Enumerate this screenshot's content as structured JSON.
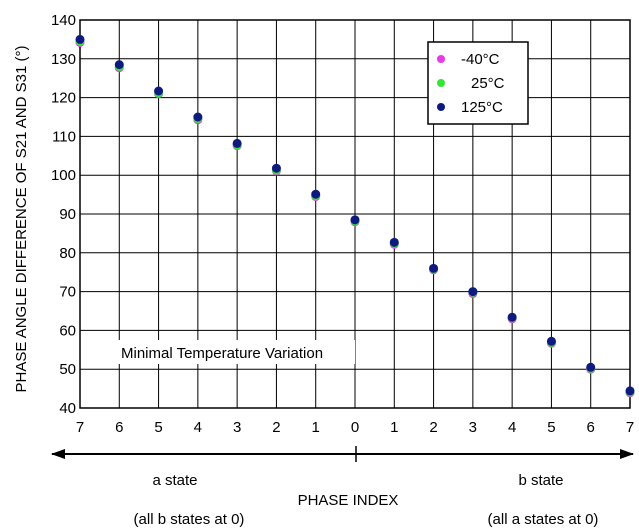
{
  "chart_data": {
    "type": "scatter",
    "ylabel": "PHASE ANGLE DIFFERENCE OF S21 AND S31 (°)",
    "xlabel": "PHASE INDEX",
    "ylim": [
      40,
      140
    ],
    "yticks": [
      40,
      50,
      60,
      70,
      80,
      90,
      100,
      110,
      120,
      130,
      140
    ],
    "categories": [
      "7",
      "6",
      "5",
      "4",
      "3",
      "2",
      "1",
      "0",
      "1",
      "2",
      "3",
      "4",
      "5",
      "6",
      "7"
    ],
    "grid": true,
    "legend_position": "top-right",
    "series": [
      {
        "name": "-40°C",
        "color": "#e83be8",
        "values": [
          134.2,
          127.7,
          121.0,
          114.3,
          107.6,
          101.1,
          94.5,
          88.0,
          82.2,
          75.6,
          69.5,
          63.0,
          56.7,
          50.0,
          43.9
        ]
      },
      {
        "name": "25°C",
        "color": "#33e633",
        "values": [
          134.5,
          128.0,
          121.2,
          114.6,
          107.8,
          101.3,
          94.7,
          88.2,
          82.4,
          75.8,
          69.8,
          63.2,
          56.9,
          50.2,
          44.1
        ]
      },
      {
        "name": "125°C",
        "color": "#0d1a80",
        "values": [
          135.0,
          128.5,
          121.7,
          115.0,
          108.2,
          101.8,
          95.1,
          88.5,
          82.7,
          76.0,
          70.0,
          63.4,
          57.2,
          50.5,
          44.4
        ]
      }
    ],
    "annotation": "Minimal Temperature Variation",
    "left_state": {
      "label": "a state",
      "note": "(all b states at 0)"
    },
    "right_state": {
      "label": "b state",
      "note": "(all a states at 0)"
    }
  }
}
